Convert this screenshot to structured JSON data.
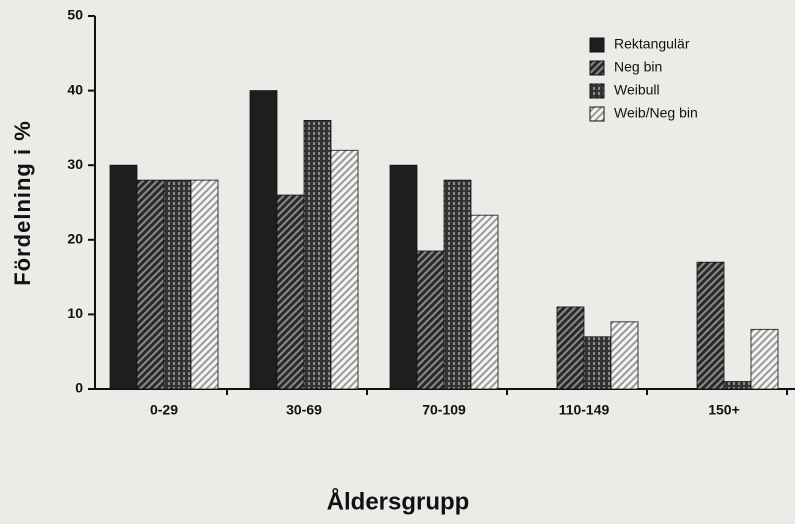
{
  "chart_data": {
    "type": "bar",
    "xlabel": "Åldersgrupp",
    "ylabel": "Fördelning i %",
    "categories": [
      "0-29",
      "30-69",
      "70-109",
      "110-149",
      "150+"
    ],
    "series": [
      {
        "name": "Rektangulär",
        "color": "#1e1e1e",
        "hatch": "solid",
        "values": [
          30,
          40,
          30,
          0,
          0
        ]
      },
      {
        "name": "Neg bin",
        "color": "#2a2a2a",
        "hatch": "diagonal",
        "values": [
          28,
          26,
          18.5,
          11,
          17
        ]
      },
      {
        "name": "Weibull",
        "color": "#333333",
        "hatch": "grid",
        "values": [
          28,
          36,
          28,
          7,
          1
        ]
      },
      {
        "name": "Weib/Neg bin",
        "color": "#9a9a9a",
        "hatch": "diagonal",
        "values": [
          28,
          32,
          23.3,
          9,
          8
        ]
      }
    ],
    "ylim": [
      0,
      50
    ],
    "yticks": [
      0,
      10,
      20,
      30,
      40,
      50
    ],
    "legend": "upper right"
  }
}
